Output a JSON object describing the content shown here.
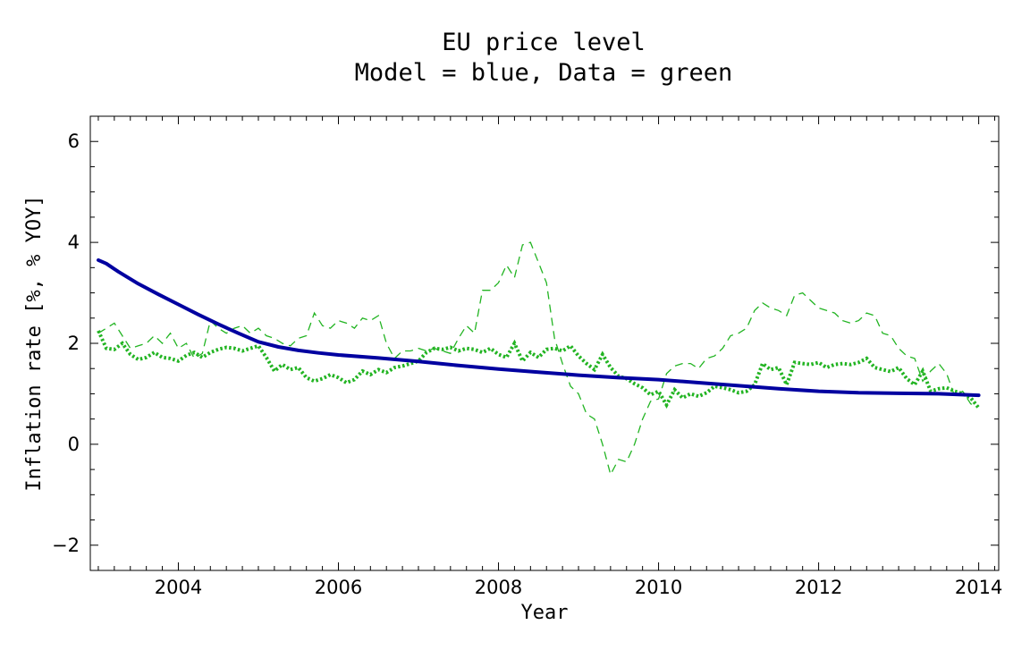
{
  "chart_data": {
    "type": "line",
    "title": "EU price level",
    "subtitle": "Model = blue, Data = green",
    "xlabel": "Year",
    "ylabel": "Inflation rate [%, % YOY]",
    "xlim": [
      2002.9,
      2014.25
    ],
    "ylim": [
      -2.5,
      6.5
    ],
    "x_ticks": [
      2004,
      2006,
      2008,
      2010,
      2012,
      2014
    ],
    "x_tick_labels": [
      "2004",
      "2006",
      "2008",
      "2010",
      "2012",
      "2014"
    ],
    "y_ticks": [
      -2,
      0,
      2,
      4,
      6
    ],
    "y_tick_labels": [
      "−2",
      "0",
      "2",
      "4",
      "6"
    ],
    "grid": false,
    "colors": {
      "model": "#0000a0",
      "data": "#22b422"
    },
    "series": [
      {
        "style": "solid",
        "x": [
          2003.0,
          2003.1,
          2003.25,
          2003.5,
          2003.75,
          2004.0,
          2004.25,
          2004.5,
          2004.75,
          2005.0,
          2005.25,
          2005.5,
          2005.75,
          2006.0,
          2006.5,
          2007.0,
          2007.5,
          2008.0,
          2008.5,
          2009.0,
          2009.5,
          2010.0,
          2010.5,
          2011.0,
          2011.5,
          2012.0,
          2012.5,
          2013.0,
          2013.5,
          2014.0
        ],
        "values": [
          3.65,
          3.58,
          3.42,
          3.18,
          2.97,
          2.77,
          2.57,
          2.38,
          2.2,
          2.03,
          1.93,
          1.86,
          1.81,
          1.77,
          1.71,
          1.64,
          1.56,
          1.49,
          1.43,
          1.37,
          1.32,
          1.28,
          1.22,
          1.16,
          1.1,
          1.05,
          1.02,
          1.01,
          1.0,
          0.97
        ]
      },
      {
        "style": "dotted",
        "x": [
          2003.0,
          2003.1,
          2003.2,
          2003.3,
          2003.4,
          2003.5,
          2003.6,
          2003.7,
          2003.8,
          2003.9,
          2004.0,
          2004.1,
          2004.2,
          2004.3,
          2004.4,
          2004.5,
          2004.6,
          2004.7,
          2004.8,
          2004.9,
          2005.0,
          2005.1,
          2005.2,
          2005.3,
          2005.4,
          2005.5,
          2005.6,
          2005.7,
          2005.8,
          2005.9,
          2006.0,
          2006.1,
          2006.2,
          2006.3,
          2006.4,
          2006.5,
          2006.6,
          2006.7,
          2006.8,
          2006.9,
          2007.0,
          2007.1,
          2007.2,
          2007.3,
          2007.4,
          2007.5,
          2007.6,
          2007.7,
          2007.8,
          2007.9,
          2008.0,
          2008.1,
          2008.2,
          2008.3,
          2008.4,
          2008.5,
          2008.6,
          2008.7,
          2008.8,
          2008.9,
          2009.0,
          2009.1,
          2009.2,
          2009.3,
          2009.4,
          2009.5,
          2009.6,
          2009.7,
          2009.8,
          2009.9,
          2010.0,
          2010.1,
          2010.2,
          2010.3,
          2010.4,
          2010.5,
          2010.6,
          2010.7,
          2010.8,
          2010.9,
          2011.0,
          2011.1,
          2011.2,
          2011.3,
          2011.4,
          2011.5,
          2011.6,
          2011.7,
          2011.8,
          2011.9,
          2012.0,
          2012.1,
          2012.2,
          2012.3,
          2012.4,
          2012.5,
          2012.6,
          2012.7,
          2012.8,
          2012.9,
          2013.0,
          2013.1,
          2013.2,
          2013.3,
          2013.4,
          2013.5,
          2013.6,
          2013.7,
          2013.8,
          2013.9,
          2014.0
        ],
        "values": [
          2.25,
          1.9,
          1.88,
          2.0,
          1.78,
          1.68,
          1.72,
          1.82,
          1.72,
          1.7,
          1.65,
          1.76,
          1.82,
          1.72,
          1.82,
          1.88,
          1.92,
          1.9,
          1.85,
          1.9,
          1.95,
          1.72,
          1.45,
          1.58,
          1.48,
          1.52,
          1.32,
          1.25,
          1.3,
          1.38,
          1.32,
          1.22,
          1.28,
          1.45,
          1.38,
          1.48,
          1.42,
          1.52,
          1.55,
          1.6,
          1.65,
          1.82,
          1.9,
          1.88,
          1.92,
          1.85,
          1.9,
          1.88,
          1.82,
          1.9,
          1.78,
          1.72,
          2.0,
          1.65,
          1.82,
          1.72,
          1.88,
          1.9,
          1.85,
          1.95,
          1.75,
          1.6,
          1.48,
          1.78,
          1.52,
          1.35,
          1.3,
          1.2,
          1.12,
          0.98,
          1.05,
          0.78,
          1.08,
          0.92,
          1.0,
          0.95,
          1.02,
          1.15,
          1.12,
          1.08,
          1.02,
          1.05,
          1.18,
          1.6,
          1.48,
          1.52,
          1.18,
          1.62,
          1.6,
          1.58,
          1.62,
          1.52,
          1.58,
          1.6,
          1.58,
          1.62,
          1.7,
          1.52,
          1.48,
          1.44,
          1.52,
          1.3,
          1.18,
          1.45,
          1.05,
          1.1,
          1.12,
          1.05,
          1.0,
          0.92,
          0.72
        ]
      },
      {
        "style": "dashed",
        "x": [
          2003.0,
          2003.1,
          2003.2,
          2003.3,
          2003.4,
          2003.5,
          2003.6,
          2003.7,
          2003.8,
          2003.9,
          2004.0,
          2004.1,
          2004.2,
          2004.3,
          2004.4,
          2004.5,
          2004.6,
          2004.7,
          2004.8,
          2004.9,
          2005.0,
          2005.1,
          2005.2,
          2005.3,
          2005.4,
          2005.5,
          2005.6,
          2005.7,
          2005.8,
          2005.9,
          2006.0,
          2006.1,
          2006.2,
          2006.3,
          2006.4,
          2006.5,
          2006.6,
          2006.7,
          2006.8,
          2006.9,
          2007.0,
          2007.1,
          2007.2,
          2007.3,
          2007.4,
          2007.5,
          2007.6,
          2007.7,
          2007.8,
          2007.9,
          2008.0,
          2008.1,
          2008.2,
          2008.3,
          2008.4,
          2008.5,
          2008.6,
          2008.7,
          2008.8,
          2008.9,
          2009.0,
          2009.1,
          2009.2,
          2009.3,
          2009.4,
          2009.5,
          2009.6,
          2009.7,
          2009.8,
          2009.9,
          2010.0,
          2010.1,
          2010.2,
          2010.3,
          2010.4,
          2010.5,
          2010.6,
          2010.7,
          2010.8,
          2010.9,
          2011.0,
          2011.1,
          2011.2,
          2011.3,
          2011.4,
          2011.5,
          2011.6,
          2011.7,
          2011.8,
          2011.9,
          2012.0,
          2012.1,
          2012.2,
          2012.3,
          2012.4,
          2012.5,
          2012.6,
          2012.7,
          2012.8,
          2012.9,
          2013.0,
          2013.1,
          2013.2,
          2013.3,
          2013.4,
          2013.5,
          2013.6,
          2013.7,
          2013.8,
          2013.9,
          2014.0
        ],
        "values": [
          2.2,
          2.3,
          2.4,
          2.15,
          1.9,
          1.95,
          2.0,
          2.15,
          2.0,
          2.2,
          1.9,
          2.0,
          1.7,
          1.8,
          2.45,
          2.3,
          2.2,
          2.3,
          2.35,
          2.2,
          2.3,
          2.15,
          2.1,
          2.0,
          1.95,
          2.1,
          2.15,
          2.6,
          2.35,
          2.3,
          2.45,
          2.4,
          2.3,
          2.5,
          2.45,
          2.55,
          2.0,
          1.7,
          1.85,
          1.85,
          1.9,
          1.85,
          1.9,
          1.85,
          1.8,
          2.1,
          2.35,
          2.2,
          3.05,
          3.05,
          3.2,
          3.55,
          3.3,
          3.95,
          4.0,
          3.6,
          3.2,
          2.1,
          1.6,
          1.15,
          1.0,
          0.6,
          0.5,
          0.0,
          -0.6,
          -0.3,
          -0.35,
          0.0,
          0.5,
          0.85,
          0.9,
          1.4,
          1.55,
          1.6,
          1.6,
          1.5,
          1.7,
          1.75,
          1.9,
          2.15,
          2.2,
          2.3,
          2.65,
          2.8,
          2.7,
          2.65,
          2.55,
          2.95,
          3.0,
          2.85,
          2.7,
          2.65,
          2.6,
          2.45,
          2.4,
          2.45,
          2.6,
          2.55,
          2.2,
          2.15,
          1.9,
          1.75,
          1.7,
          1.25,
          1.45,
          1.6,
          1.4,
          0.95,
          1.05,
          0.8,
          0.75
        ]
      }
    ]
  }
}
